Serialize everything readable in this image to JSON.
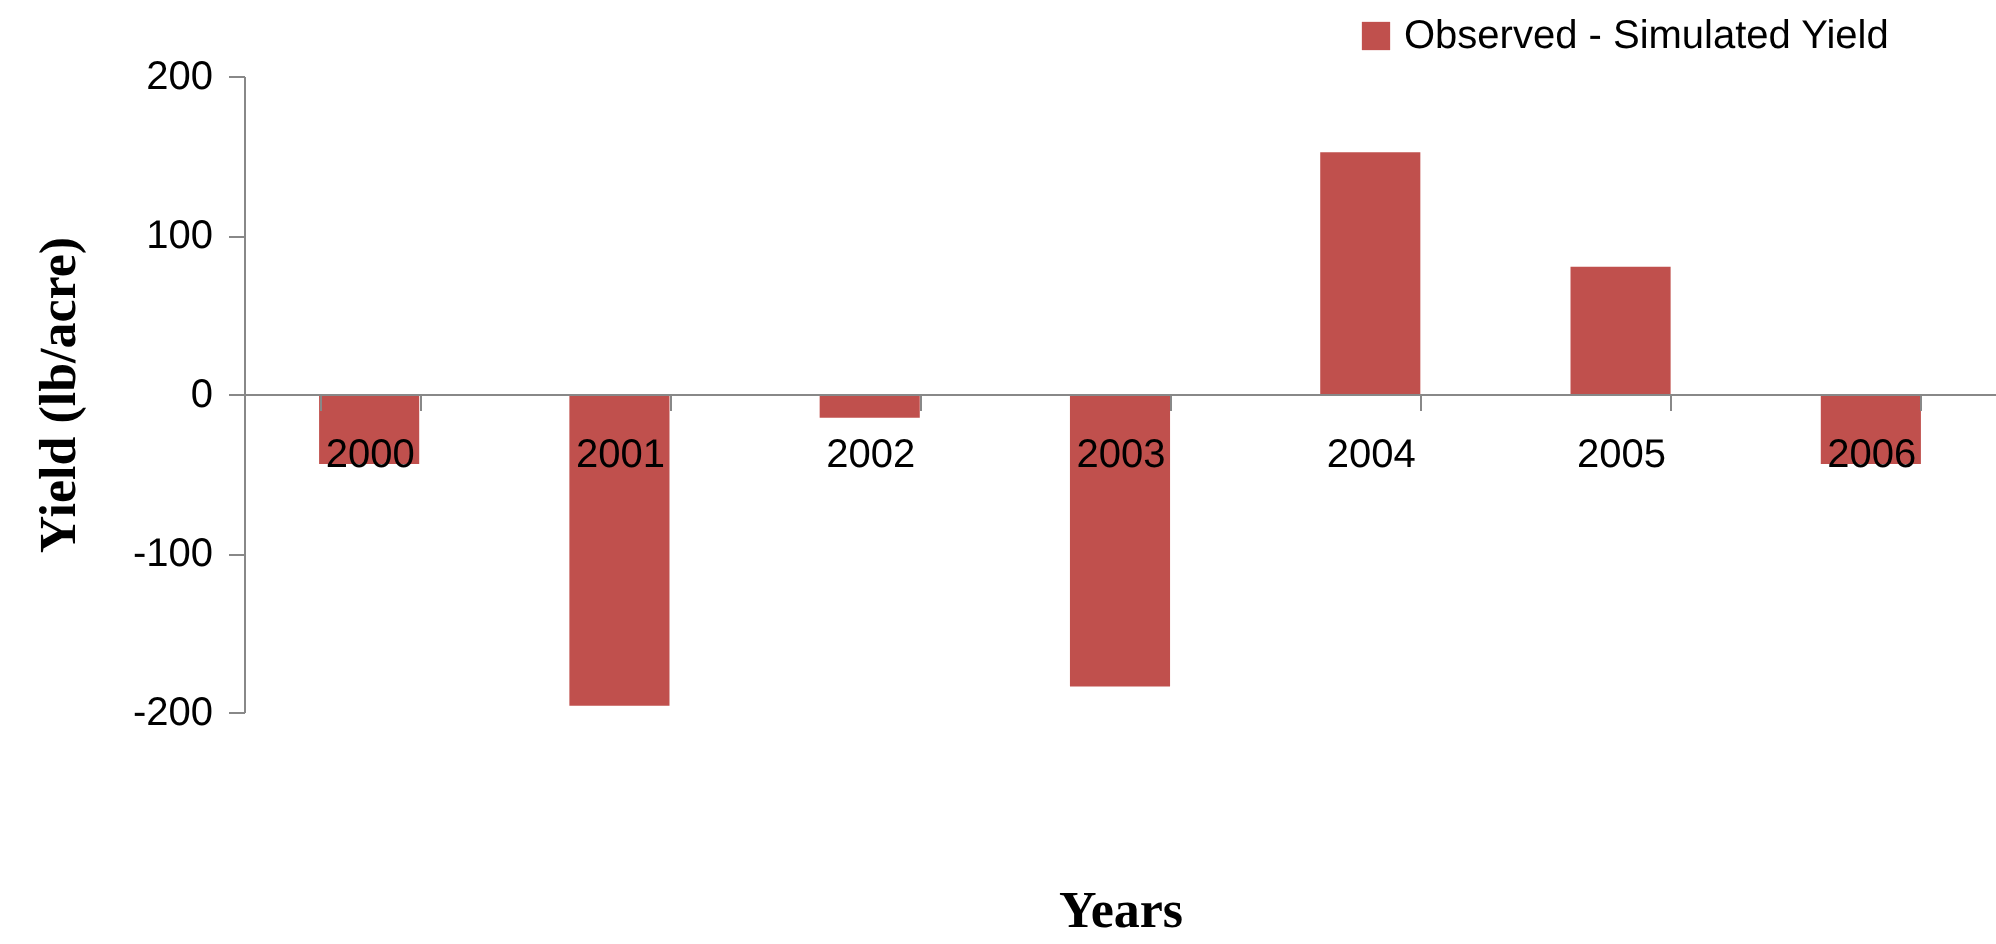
{
  "chart_data": {
    "type": "bar",
    "xlabel": "Years",
    "ylabel": "Yield (lb/acre)",
    "categories": [
      "2000",
      "2001",
      "2002",
      "2003",
      "2004",
      "2005",
      "2006"
    ],
    "series": [
      {
        "name": "Observed - Simulated Yield",
        "color": "#c0504d",
        "values": [
          -44,
          -196,
          -15,
          -184,
          152,
          80,
          -44
        ]
      }
    ],
    "ylim": [
      -200,
      200
    ],
    "yticks": [
      -200,
      -100,
      0,
      100,
      200
    ],
    "grid": false,
    "legend": "top right"
  }
}
